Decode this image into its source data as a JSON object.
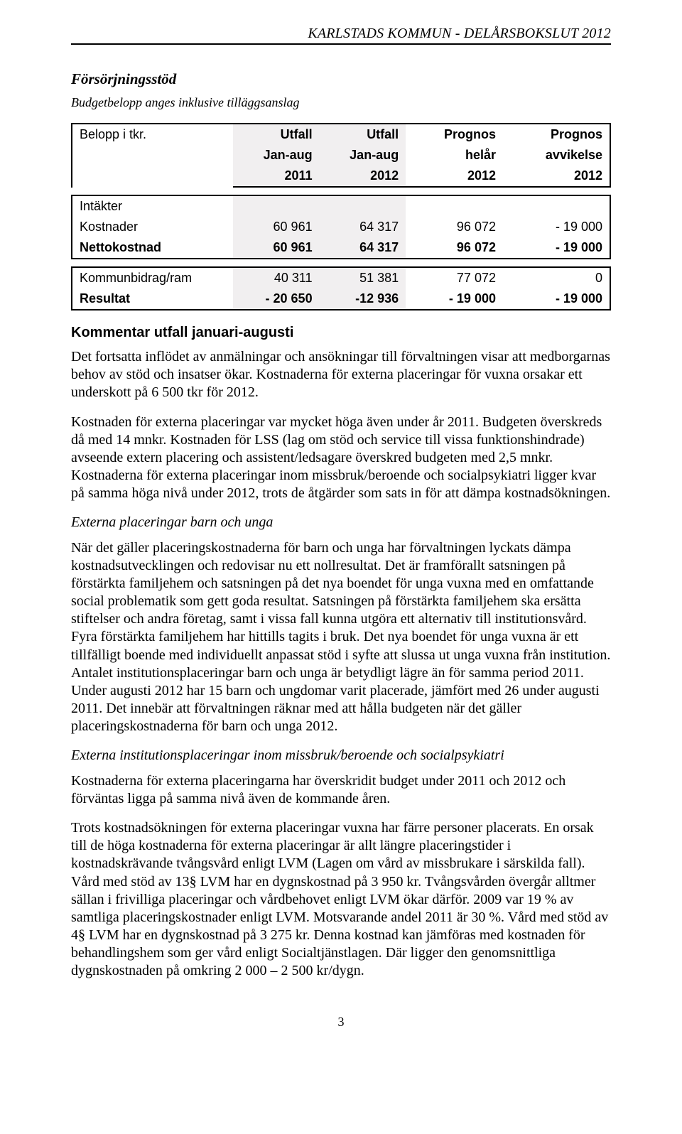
{
  "running_head": "KARLSTADS KOMMUN - DELÅRSBOKSLUT 2012",
  "section_title": "Försörjningsstöd",
  "subnote": "Budgetbelopp anges inklusive tilläggsanslag",
  "table": {
    "corner": "Belopp i tkr.",
    "head1": [
      "Utfall",
      "Utfall",
      "Prognos",
      "Prognos"
    ],
    "head2": [
      "Jan-aug",
      "Jan-aug",
      "helår",
      "avvikelse"
    ],
    "head3": [
      "2011",
      "2012",
      "2012",
      "2012"
    ],
    "rows_block1": [
      {
        "label": "Intäkter",
        "vals": [
          "",
          "",
          "",
          ""
        ]
      },
      {
        "label": "Kostnader",
        "vals": [
          "60 961",
          "64 317",
          "96 072",
          "- 19 000"
        ]
      },
      {
        "label": "Nettokostnad",
        "vals": [
          "60 961",
          "64 317",
          "96 072",
          "- 19 000"
        ],
        "bold": true
      }
    ],
    "rows_block2": [
      {
        "label": "Kommunbidrag/ram",
        "vals": [
          "40 311",
          "51 381",
          "77 072",
          "0"
        ]
      },
      {
        "label": "Resultat",
        "vals": [
          "- 20 650",
          "-12 936",
          "- 19 000",
          "- 19 000"
        ],
        "bold": true
      }
    ]
  },
  "h2": "Kommentar utfall januari-augusti",
  "p1": "Det fortsatta inflödet av anmälningar och ansökningar till förvaltningen visar att medborgarnas behov av stöd och insatser ökar. Kostnaderna för externa placeringar för vuxna orsakar ett underskott på 6 500 tkr för 2012.",
  "p2": "Kostnaden för externa placeringar var mycket höga även under år 2011. Budgeten överskreds då med 14 mnkr. Kostnaden för LSS (lag om stöd och service till vissa funktionshindrade) avseende extern placering och assistent/ledsagare överskred budgeten med 2,5 mnkr. Kostnaderna för externa placeringar inom missbruk/beroende och socialpsykiatri ligger kvar på samma höga nivå under 2012, trots de åtgärder som sats in för att dämpa kostnadsökningen.",
  "sub1": "Externa placeringar barn och unga",
  "p3": "När det gäller placeringskostnaderna för barn och unga har förvaltningen lyckats dämpa kostnadsutvecklingen och redovisar nu ett nollresultat. Det är framförallt satsningen på förstärkta familjehem och satsningen på det nya boendet för unga vuxna med en omfattande social problematik som gett goda resultat. Satsningen på förstärkta familjehem ska ersätta stiftelser och andra företag, samt i vissa fall kunna utgöra ett alternativ till institutionsvård. Fyra förstärkta familjehem har hittills tagits i bruk. Det nya boendet för unga vuxna är ett tillfälligt boende med individuellt anpassat stöd i syfte att slussa ut unga vuxna från institution. Antalet institutionsplaceringar barn och unga är betydligt lägre än för samma period 2011. Under augusti 2012 har 15 barn och ungdomar varit placerade, jämfört med 26 under augusti 2011. Det innebär att förvaltningen räknar med att hålla budgeten när det gäller placeringskostnaderna för barn och unga 2012.",
  "sub2": "Externa institutionsplaceringar inom missbruk/beroende och socialpsykiatri",
  "p4": "Kostnaderna för externa placeringarna har överskridit budget under 2011 och 2012 och förväntas ligga på samma nivå även de kommande åren.",
  "p5": "Trots kostnadsökningen för externa placeringar vuxna har färre personer placerats. En orsak till de höga kostnaderna för externa placeringar är allt längre placeringstider i kostnadskrävande tvångsvård enligt LVM (Lagen om vård av missbrukare i särskilda fall). Vård med stöd av 13§ LVM har en dygnskostnad på 3 950 kr. Tvångsvården övergår alltmer sällan i frivilliga placeringar och vårdbehovet enligt LVM ökar därför. 2009 var 19 % av samtliga placeringskostnader enligt LVM. Motsvarande andel 2011 är 30 %. Vård med stöd av 4§ LVM har en dygnskostnad på 3 275 kr. Denna kostnad kan jämföras med kostnaden för behandlingshem som ger vård enligt Socialtjänstlagen. Där ligger den genomsnittliga dygnskostnaden på omkring 2 000 – 2 500 kr/dygn.",
  "folio": "3"
}
